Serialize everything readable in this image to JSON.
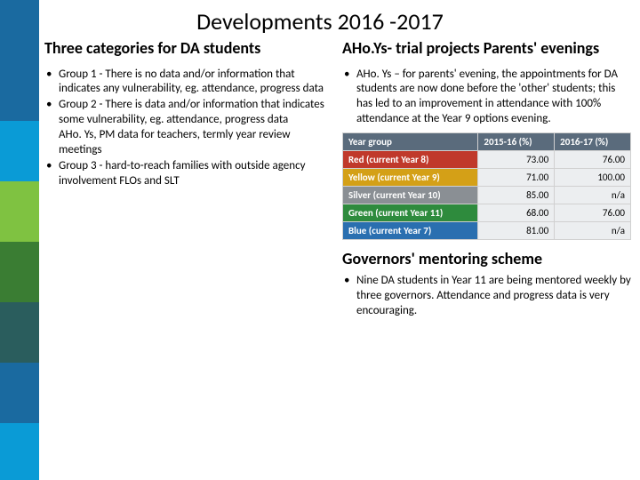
{
  "title": "Developments 2016 -2017",
  "left_bar_colors": [
    "#1a6aa0",
    "#1a6aa0",
    "#0a9bd6",
    "#7fc241",
    "#3a7d33",
    "#2a5d5d",
    "#1a6aa0",
    "#0a9bd6"
  ],
  "left_bar_heights": [
    68,
    68,
    68,
    68,
    68,
    68,
    68,
    64
  ],
  "left": {
    "heading": "Three categories for DA students",
    "items": [
      " Group 1  - There is no data and/or information that indicates any vulnerability, eg. attendance, progress data",
      "Group 2  - There is data and/or information that indicates some vulnerability, eg. attendance, progress data\nAHo. Ys, PM data for teachers, termly year review meetings",
      "Group 3  - hard-to-reach families with outside agency involvement FLOs and SLT"
    ]
  },
  "right": {
    "heading1": "AHo.Ys- trial projects Parents' evenings",
    "bullet1": "AHo. Ys – for parents' evening, the appointments for DA students are now done before the 'other' students; this has led to an improvement in attendance with 100% attendance at the Year 9 options evening.",
    "table": {
      "header_bg": "#5a6b7c",
      "columns": [
        "Year group",
        "2015-16 (%)",
        "2016-17 (%)"
      ],
      "rows": [
        {
          "label": "Red (current Year 8)",
          "color": "#c0392b",
          "v1": "73.00",
          "v2": "76.00"
        },
        {
          "label": "Yellow (current Year 9)",
          "color": "#d4a017",
          "v1": "71.00",
          "v2": "100.00"
        },
        {
          "label": "Silver (current Year 10)",
          "color": "#8a8f94",
          "v1": "85.00",
          "v2": "n/a"
        },
        {
          "label": "Green (current Year 11)",
          "color": "#2e8b3d",
          "v1": "68.00",
          "v2": "76.00"
        },
        {
          "label": "Blue (current Year 7)",
          "color": "#2a6fb0",
          "v1": "81.00",
          "v2": "n/a"
        }
      ]
    },
    "heading2": "Governors' mentoring scheme",
    "bullet2": "Nine DA students in Year 11 are being mentored weekly by three governors. Attendance and progress data is very encouraging."
  }
}
